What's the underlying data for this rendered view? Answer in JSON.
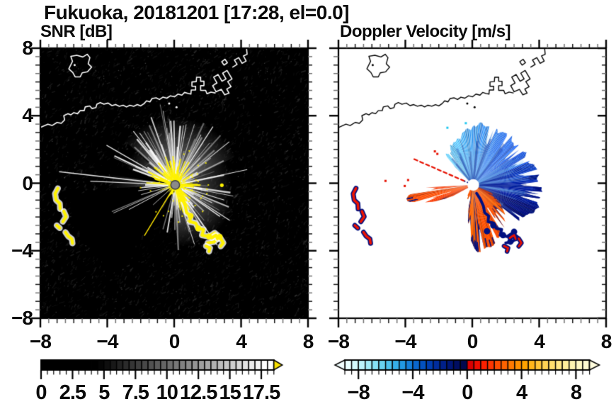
{
  "title": "Fukuoka, 20181201 [17:28, el=0.0]",
  "panels": {
    "snr": {
      "title": "SNR [dB]",
      "background": "#000000",
      "coast_color": "#ffffff"
    },
    "velocity": {
      "title": "Doppler Velocity [m/s]",
      "background": "#ffffff",
      "coast_color": "#000000"
    }
  },
  "axes": {
    "range": [
      -8,
      8
    ],
    "x_tick_labels": [
      "−8",
      "−4",
      "0",
      "4",
      "8"
    ],
    "x_tick_values": [
      -8,
      -4,
      0,
      4,
      8
    ],
    "y_tick_labels": [
      "8",
      "4",
      "0",
      "−4",
      "−8"
    ],
    "y_tick_values": [
      8,
      4,
      0,
      -4,
      -8
    ],
    "minor_step": 0.5
  },
  "colorbars": {
    "snr": {
      "labels": [
        "0",
        "2.5",
        "5",
        "7.5",
        "10",
        "12.5",
        "15",
        "17.5"
      ],
      "values": [
        0,
        2.5,
        5,
        7.5,
        10,
        12.5,
        15,
        17.5
      ],
      "min": 0,
      "max": 18.5,
      "segment_step": 0.5,
      "gray_start": 4.5,
      "gray_end": 17.8,
      "overflow_arrow_color": "#f6de00"
    },
    "velocity": {
      "labels": [
        "−8",
        "−4",
        "0",
        "4",
        "8"
      ],
      "values": [
        -8,
        -4,
        0,
        4,
        8
      ],
      "min": -9,
      "max": 9,
      "segment_step": 0.5,
      "neg_palette": [
        "#eaffff",
        "#d4fafc",
        "#bcf4fa",
        "#a2ecf7",
        "#86e1f4",
        "#69d3f1",
        "#4dc2ee",
        "#35afea",
        "#2299e3",
        "#147fd9",
        "#0a67cd",
        "#0351bf",
        "#003daf",
        "#002d9d",
        "#00208a",
        "#001676",
        "#000e62",
        "#00084e"
      ],
      "pos_palette": [
        "#d90000",
        "#ef0d00",
        "#fc2000",
        "#ff3600",
        "#ff4d00",
        "#ff6300",
        "#ff7900",
        "#ff8f00",
        "#ffa300",
        "#ffb51a",
        "#ffc538",
        "#ffd254",
        "#ffde6e",
        "#ffe786",
        "#ffee9c",
        "#fff4b0",
        "#fff8c2",
        "#fffbd2"
      ],
      "tip_left": "#f2ffff",
      "tip_right": "#fffdde"
    }
  },
  "scene": {
    "radar_center": [
      0.06,
      -0.1
    ],
    "snr": {
      "core_color": "#fff200",
      "site_dot_color": "#8a8a8a",
      "dark_sector_deg": [
        185,
        237.5
      ],
      "thin_yellow_ray_deg": 238.8
    },
    "velocity_fans": {
      "blue_fan": {
        "a": [
          -38,
          136
        ],
        "jit": 0.28,
        "notch": 0.07,
        "fringe": 0.5,
        "cjit": 12,
        "r": [
          [
            -38,
            3.35
          ],
          [
            -30,
            3.75
          ],
          [
            -18,
            4.05
          ],
          [
            -6,
            4.0
          ],
          [
            8,
            3.9
          ],
          [
            25,
            3.65
          ],
          [
            45,
            3.5
          ],
          [
            62,
            3.55
          ],
          [
            78,
            3.65
          ],
          [
            90,
            3.5
          ],
          [
            102,
            3.15
          ],
          [
            114,
            2.8
          ],
          [
            124,
            2.5
          ],
          [
            136,
            2.15
          ]
        ],
        "col": [
          [
            -38,
            "#000c6e"
          ],
          [
            -22,
            "#001284"
          ],
          [
            -8,
            "#001ca0"
          ],
          [
            10,
            "#0030c0"
          ],
          [
            35,
            "#0a4ada"
          ],
          [
            60,
            "#1264ea"
          ],
          [
            82,
            "#1e82f0"
          ],
          [
            102,
            "#279ef3"
          ],
          [
            120,
            "#2fb2f5"
          ],
          [
            136,
            "#3ec0f7"
          ]
        ],
        "fringe_max_deg": 15
      },
      "west_lobe": {
        "a": [
          183,
          208
        ],
        "jit": 0.4,
        "notch": 0.22,
        "fringe": 0.12,
        "cjit": 14,
        "r": [
          [
            183,
            2.6
          ],
          [
            186,
            3.4
          ],
          [
            190,
            3.85
          ],
          [
            194,
            3.75
          ],
          [
            198,
            3.35
          ],
          [
            202,
            2.7
          ],
          [
            205,
            2.0
          ],
          [
            208,
            1.1
          ]
        ],
        "col": [
          [
            183,
            "#ee2e00"
          ],
          [
            190,
            "#ff5200"
          ],
          [
            198,
            "#ff4600"
          ],
          [
            208,
            "#e83200"
          ]
        ],
        "gaps": [
          [
            186.6,
            188.4,
            0.5
          ],
          [
            196.3,
            197.4,
            1.4
          ]
        ]
      },
      "apex_lobe": {
        "a": [
          238,
          258
        ],
        "jit": 0.15,
        "notch": 0.3,
        "cjit": 14,
        "r": [
          [
            238,
            0.55
          ],
          [
            248,
            0.85
          ],
          [
            258,
            0.7
          ]
        ],
        "col": [
          [
            238,
            "#ff5a00"
          ],
          [
            258,
            "#ff5000"
          ]
        ]
      },
      "south_lobe": {
        "a": [
          258,
          336
        ],
        "jit": 0.3,
        "notch": 0.1,
        "fringe": 0.5,
        "cjit": 13,
        "r": [
          [
            258,
            1.2
          ],
          [
            262,
            2.2
          ],
          [
            266,
            3.2
          ],
          [
            272,
            3.9
          ],
          [
            280,
            4.05
          ],
          [
            288,
            3.7
          ],
          [
            296,
            3.35
          ],
          [
            305,
            3.0
          ],
          [
            314,
            2.65
          ],
          [
            323,
            2.1
          ],
          [
            330,
            1.6
          ],
          [
            336,
            1.0
          ]
        ],
        "col": [
          [
            258,
            "#ff5c00"
          ],
          [
            268,
            "#ff6200"
          ],
          [
            282,
            "#ff5400"
          ],
          [
            300,
            "#ff4a00"
          ],
          [
            318,
            "#ff5e00"
          ],
          [
            336,
            "#f24000"
          ]
        ],
        "gaps": [
          [
            301,
            303,
            1.6
          ]
        ],
        "alias_colors": [
          "#0030c0",
          "#6cc0f0",
          "#001078"
        ]
      },
      "red_ray_deg": 156.5,
      "navy": "#001080",
      "red": "#e61000"
    },
    "clutter_arcs": [
      [
        [
          -6.95,
          -0.3
        ],
        [
          -7.12,
          -0.62
        ],
        [
          -7.06,
          -1.0
        ],
        [
          -6.84,
          -1.2
        ],
        [
          -6.82,
          -1.52
        ]
      ],
      [
        [
          -6.6,
          -1.66
        ],
        [
          -6.46,
          -1.98
        ],
        [
          -6.66,
          -2.28
        ]
      ],
      [
        [
          -7.02,
          -2.5
        ],
        [
          -6.84,
          -2.66
        ]
      ],
      [
        [
          -6.5,
          -2.9
        ],
        [
          -6.34,
          -3.14
        ],
        [
          -6.12,
          -3.3
        ],
        [
          -6.08,
          -3.56
        ]
      ]
    ],
    "clutter_chain": [
      [
        0.26,
        -0.6
      ],
      [
        0.48,
        -0.94
      ],
      [
        0.66,
        -1.34
      ],
      [
        0.74,
        -1.74
      ],
      [
        0.98,
        -1.94
      ],
      [
        0.94,
        -2.28
      ],
      [
        1.28,
        -2.36
      ],
      [
        1.44,
        -2.68
      ],
      [
        1.76,
        -2.74
      ],
      [
        1.66,
        -3.08
      ],
      [
        2.08,
        -3.16
      ],
      [
        2.42,
        -2.94
      ],
      [
        2.72,
        -3.18
      ],
      [
        2.38,
        -3.48
      ],
      [
        2.0,
        -3.54
      ]
    ],
    "hooks": [
      [
        [
          2.24,
          -3.24
        ],
        [
          2.5,
          -3.08
        ],
        [
          2.6,
          -3.3
        ]
      ],
      [
        [
          2.78,
          -3.28
        ],
        [
          2.94,
          -3.54
        ],
        [
          2.78,
          -3.74
        ]
      ],
      [
        [
          1.9,
          -3.72
        ],
        [
          2.14,
          -3.84
        ],
        [
          2.08,
          -4.04
        ]
      ]
    ],
    "navy_blobs": [
      [
        1.26,
        -2.5
      ],
      [
        1.84,
        -3.08
      ],
      [
        2.5,
        -2.88
      ],
      [
        0.88,
        -2.84
      ],
      [
        2.28,
        -3.46
      ]
    ],
    "cyan_specks": [
      [
        -1.55,
        3.35
      ],
      [
        -0.45,
        3.62
      ]
    ],
    "red_specks": [
      [
        -3.9,
        0.25
      ],
      [
        -4.1,
        -0.1
      ],
      [
        -5.25,
        0.2
      ],
      [
        -2.3,
        1.95
      ],
      [
        -2.15,
        1.8
      ]
    ],
    "yellow_speck": [
      2.85,
      -0.12
    ]
  },
  "map_overlay": {
    "coast_main": [
      [
        -8,
        3.3
      ],
      [
        -7.55,
        3.5
      ],
      [
        -7.3,
        3.42
      ],
      [
        -7.0,
        3.6
      ],
      [
        -6.75,
        3.55
      ],
      [
        -6.55,
        3.75
      ],
      [
        -6.6,
        4.0
      ],
      [
        -6.35,
        4.12
      ],
      [
        -6.18,
        4.05
      ],
      [
        -6.0,
        4.18
      ],
      [
        -5.78,
        4.12
      ],
      [
        -5.62,
        4.3
      ],
      [
        -5.38,
        4.3
      ],
      [
        -5.32,
        4.52
      ],
      [
        -5.05,
        4.58
      ],
      [
        -4.9,
        4.42
      ],
      [
        -4.68,
        4.48
      ],
      [
        -4.62,
        4.68
      ],
      [
        -4.42,
        4.78
      ],
      [
        -4.2,
        4.68
      ],
      [
        -3.95,
        4.75
      ],
      [
        -3.72,
        4.6
      ],
      [
        -3.5,
        4.66
      ],
      [
        -3.28,
        4.56
      ],
      [
        -3.05,
        4.62
      ],
      [
        -2.85,
        4.52
      ],
      [
        -2.65,
        4.62
      ],
      [
        -2.42,
        4.56
      ],
      [
        -2.2,
        4.66
      ],
      [
        -2.0,
        4.58
      ],
      [
        -1.8,
        4.72
      ],
      [
        -1.65,
        4.88
      ],
      [
        -1.45,
        4.82
      ],
      [
        -1.32,
        5.02
      ],
      [
        -1.08,
        5.06
      ],
      [
        -0.88,
        4.96
      ],
      [
        -0.68,
        5.1
      ],
      [
        -0.44,
        5.04
      ],
      [
        -0.22,
        5.18
      ],
      [
        0.02,
        5.12
      ],
      [
        0.22,
        5.28
      ],
      [
        0.46,
        5.22
      ],
      [
        0.62,
        5.38
      ],
      [
        0.82,
        5.32
      ],
      [
        1.0,
        5.28
      ],
      [
        1.02,
        5.52
      ],
      [
        1.28,
        5.52
      ],
      [
        1.28,
        5.74
      ],
      [
        1.06,
        5.74
      ],
      [
        1.06,
        6.0
      ],
      [
        1.32,
        6.02
      ],
      [
        1.34,
        6.28
      ],
      [
        1.58,
        6.28
      ],
      [
        1.58,
        6.04
      ],
      [
        1.78,
        6.04
      ],
      [
        1.78,
        5.78
      ],
      [
        1.58,
        5.78
      ],
      [
        1.58,
        5.5
      ],
      [
        1.88,
        5.5
      ],
      [
        1.96,
        5.3
      ],
      [
        2.2,
        5.4
      ],
      [
        2.45,
        5.35
      ]
    ],
    "harbor_pier": [
      [
        2.5,
        5.42
      ],
      [
        2.3,
        5.78
      ],
      [
        2.56,
        5.94
      ],
      [
        2.36,
        6.28
      ],
      [
        2.62,
        6.44
      ],
      [
        2.86,
        6.04
      ],
      [
        3.1,
        6.18
      ],
      [
        2.9,
        6.52
      ],
      [
        3.16,
        6.68
      ],
      [
        3.46,
        6.18
      ],
      [
        3.2,
        6.02
      ],
      [
        3.4,
        5.72
      ],
      [
        3.14,
        5.58
      ],
      [
        3.28,
        5.34
      ],
      [
        3.02,
        5.24
      ],
      [
        2.82,
        5.56
      ],
      [
        2.5,
        5.42
      ]
    ],
    "harbor_ne": [
      [
        3.5,
        6.88
      ],
      [
        3.76,
        7.04
      ],
      [
        3.6,
        7.3
      ],
      [
        3.86,
        7.44
      ],
      [
        4.06,
        7.1
      ],
      [
        4.3,
        7.24
      ],
      [
        4.14,
        7.54
      ],
      [
        4.36,
        7.64
      ],
      [
        4.32,
        8.05
      ]
    ],
    "harbor_diamond": [
      [
        2.98,
        7.0
      ],
      [
        3.18,
        7.14
      ],
      [
        3.04,
        7.34
      ],
      [
        2.84,
        7.2
      ],
      [
        2.98,
        7.0
      ]
    ],
    "island": [
      [
        -6.3,
        6.78
      ],
      [
        -6.08,
        7.22
      ],
      [
        -6.18,
        7.52
      ],
      [
        -5.82,
        7.58
      ],
      [
        -5.46,
        7.48
      ],
      [
        -5.2,
        7.64
      ],
      [
        -5.04,
        7.44
      ],
      [
        -5.14,
        7.08
      ],
      [
        -4.94,
        6.88
      ],
      [
        -5.18,
        6.6
      ],
      [
        -5.5,
        6.54
      ],
      [
        -5.62,
        6.3
      ],
      [
        -5.92,
        6.3
      ],
      [
        -6.06,
        6.56
      ],
      [
        -6.3,
        6.78
      ]
    ],
    "dots": [
      [
        -5.95,
        7.0
      ],
      [
        0.14,
        4.5
      ],
      [
        -0.3,
        4.72
      ]
    ]
  },
  "chart_data": [
    {
      "type": "heatmap",
      "title": "SNR [dB]",
      "xlim": [
        -8,
        8
      ],
      "ylim": [
        -8,
        8
      ],
      "x_ticks": [
        -8,
        -4,
        0,
        4,
        8
      ],
      "y_ticks": [
        -8,
        -4,
        0,
        4,
        8
      ],
      "colorbar_ticks": [
        0,
        2.5,
        5,
        7.5,
        10,
        12.5,
        15,
        17.5
      ],
      "colorbar_range": [
        0,
        18.5
      ],
      "units": "dB",
      "legend_position": "bottom",
      "description": "Radar PPI on black background: bright white radial echo starburst centered at the radar site (origin), saturated yellow core, yellow ground-clutter arcs near x=−7, y=−0.3..−3.6 and along a trail from the site to (2.5,−3.5); dark blocked sector toward azimuth 185°–238°; white coastline overlay across y≈3.3–5.4 with harbor piers near (1–4.3, 5.3–8)."
    },
    {
      "type": "heatmap",
      "title": "Doppler Velocity [m/s]",
      "xlim": [
        -8,
        8
      ],
      "ylim": [
        -8,
        8
      ],
      "x_ticks": [
        -8,
        -4,
        0,
        4,
        8
      ],
      "y_ticks": [
        -8,
        -4,
        0,
        4,
        8
      ],
      "colorbar_ticks": [
        -8,
        -4,
        0,
        4,
        8
      ],
      "colorbar_range": [
        -9,
        9
      ],
      "units": "m/s",
      "legend_position": "bottom",
      "description": "Doppler velocity PPI on white background: negative velocities (cyan→navy, toward radar) in a fan north/east of the site up to r≈4; positive velocities (red→orange, away) in a west-pointing lobe (r≈3.9) and a south-southeast lobe (r≈4); dark-navy aliasing fringes on lobe edges; thin dashed red ray toward azimuth ≈156°; red clutter arcs with navy fringes near x=−7; black coastline overlay."
    }
  ]
}
